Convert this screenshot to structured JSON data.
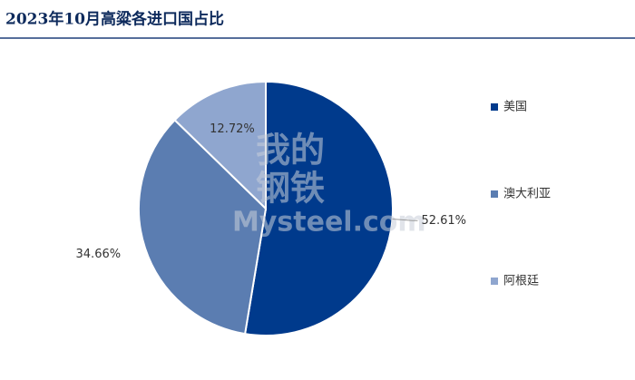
{
  "chart_data": {
    "type": "pie",
    "title": "2023年10月高粱各进口国占比",
    "categories": [
      "美国",
      "澳大利亚",
      "阿根廷"
    ],
    "values": [
      52.61,
      34.66,
      12.72
    ],
    "value_labels": [
      "52.61%",
      "34.66%",
      "12.72%"
    ],
    "colors": [
      "#003a8c",
      "#5b7db1",
      "#8fa6cf"
    ],
    "legend": "right",
    "watermark": [
      "我的",
      "钢铁",
      "Mysteel.com"
    ]
  }
}
